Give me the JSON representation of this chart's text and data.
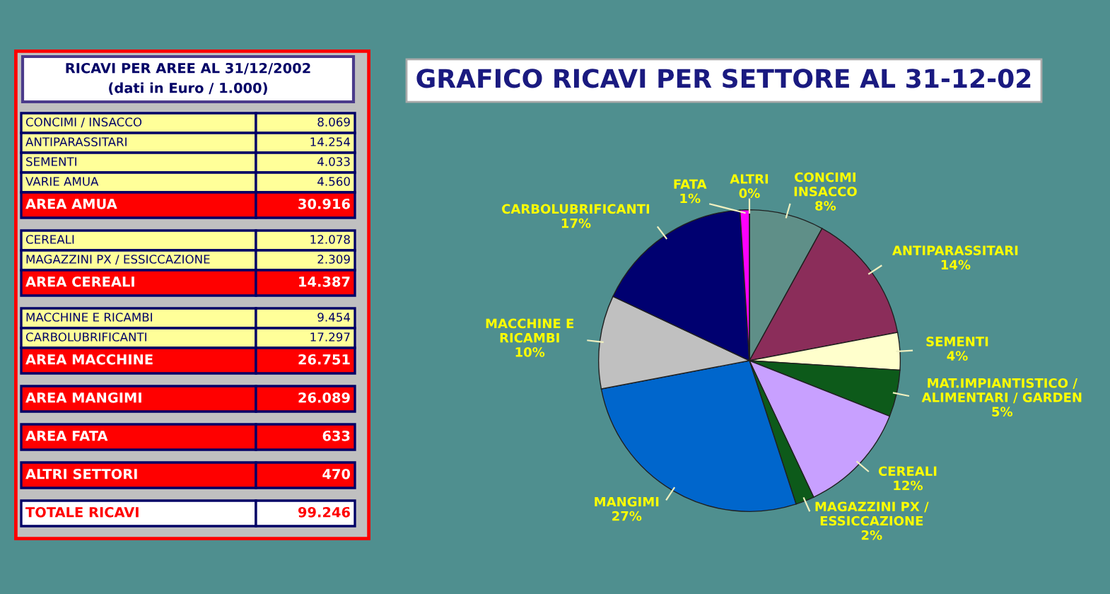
{
  "chart_data": [
    {
      "type": "other",
      "title": "RICAVI PER AREE AL 31/12/2002",
      "subtitle": "(dati in Euro / 1.000)",
      "categories": [
        "CONCIMI / INSACCO",
        "ANTIPARASSITARI",
        "SEMENTI",
        "VARIE AMUA",
        "AREA AMUA",
        "CEREALI",
        "MAGAZZINI PX / ESSICCAZIONE",
        "AREA CEREALI",
        "MACCHINE E RICAMBI",
        "CARBOLUBRIFICANTI",
        "AREA MACCHINE",
        "AREA MANGIMI",
        "AREA FATA",
        "ALTRI SETTORI",
        "TOTALE RICAVI"
      ],
      "values": [
        8069,
        14254,
        4033,
        4560,
        30916,
        12078,
        2309,
        14387,
        9454,
        17297,
        26751,
        26089,
        633,
        470,
        99246
      ],
      "value_labels": [
        "8.069",
        "14.254",
        "4.033",
        "4.560",
        "30.916",
        "12.078",
        "2.309",
        "14.387",
        "9.454",
        "17.297",
        "26.751",
        "26.089",
        "633",
        "470",
        "99.246"
      ],
      "colors": [
        "#ffff99",
        "#ffff99",
        "#ffff99",
        "#ffff99",
        "#ff0000",
        "#ffff99",
        "#ffff99",
        "#ff0000",
        "#ffff99",
        "#ffff99",
        "#ff0000",
        "#ff0000",
        "#ff0000",
        "#ff0000",
        "#ffffff"
      ]
    },
    {
      "type": "pie",
      "title": "GRAFICO RICAVI PER SETTORE AL 31-12-02",
      "categories": [
        "CONCIMI\nINSACCO",
        "ANTIPARASSITARI",
        "SEMENTI",
        "MAT.IMPIANTISTICO /\nALIMENTARI / GARDEN",
        "CEREALI",
        "MAGAZZINI PX /\nESSICCAZIONE",
        "MANGIMI",
        "MACCHINE E\nRICAMBI",
        "CARBOLUBRIFICANTI",
        "FATA",
        "ALTRI"
      ],
      "values": [
        8,
        14,
        4,
        5,
        12,
        2,
        27,
        10,
        17,
        1,
        0
      ],
      "value_labels": [
        "8%",
        "14%",
        "4%",
        "5%",
        "12%",
        "2%",
        "27%",
        "10%",
        "17%",
        "1%",
        "0%"
      ],
      "colors": [
        "#5f8f88",
        "#8b2d5a",
        "#ffffcc",
        "#0d5a1a",
        "#c8a0ff",
        "#0d5a1a",
        "#0066cc",
        "#c0c0c0",
        "#000070",
        "#ff00ff",
        "#ffff00"
      ]
    }
  ]
}
